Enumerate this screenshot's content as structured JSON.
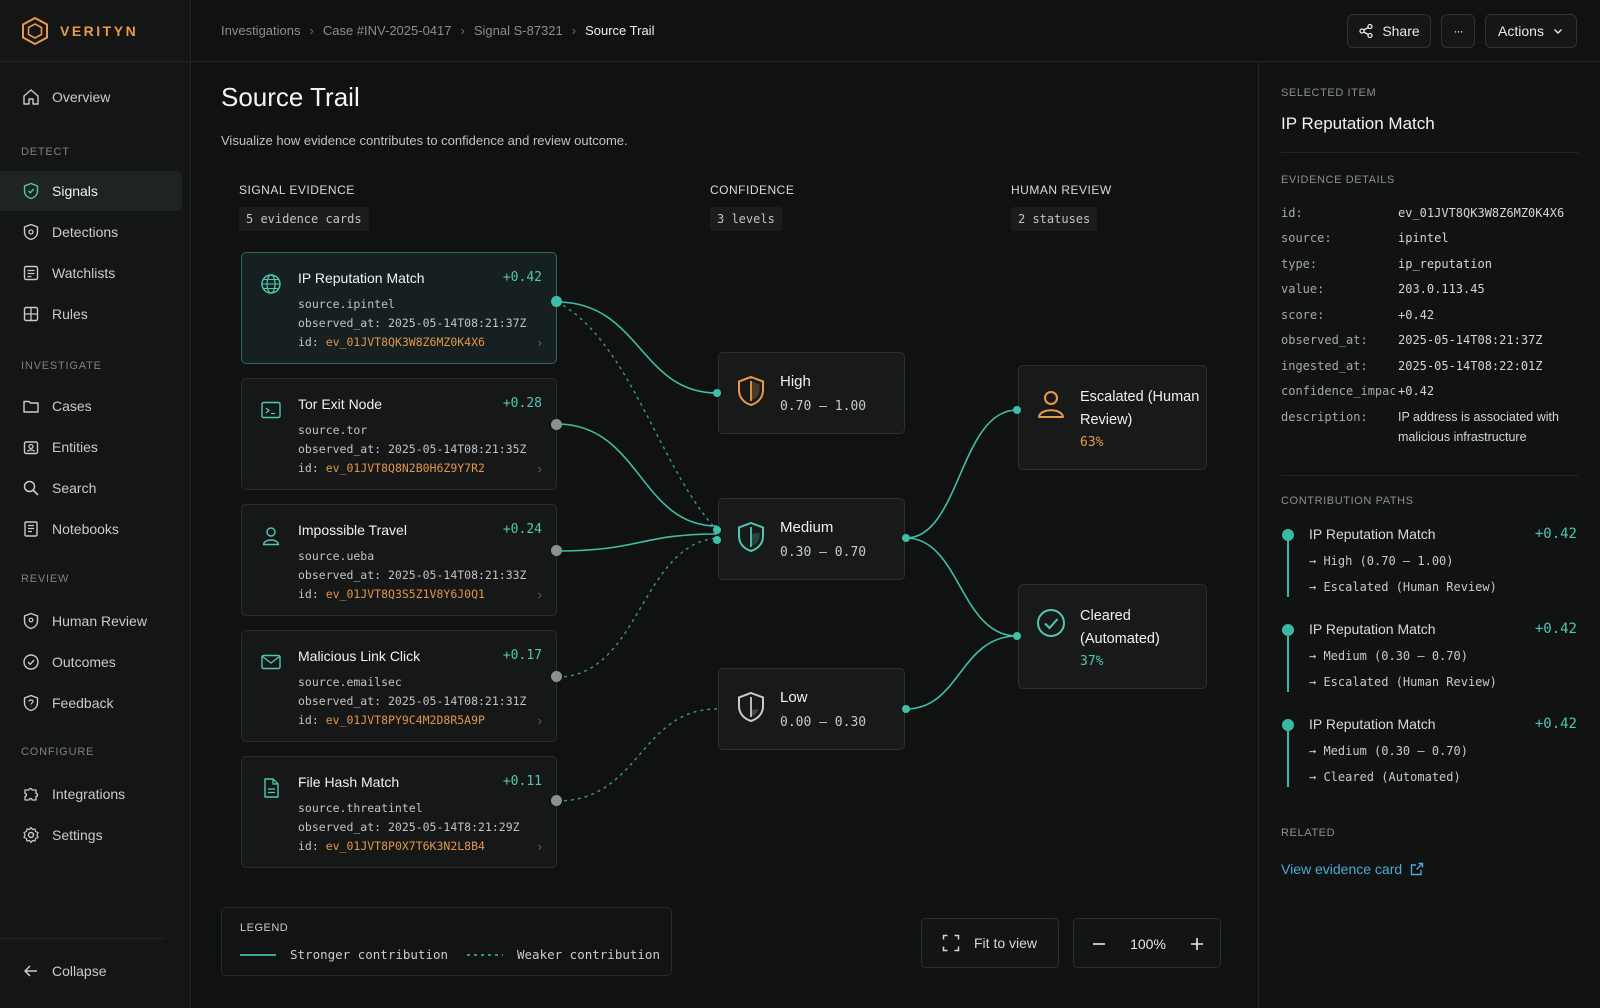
{
  "app": {
    "brand": "VERITYN"
  },
  "sidebar": {
    "items": [
      {
        "label": "Overview",
        "icon": "home-icon"
      },
      {
        "label": "Signals",
        "icon": "shield-icon",
        "active": true
      },
      {
        "label": "Detections",
        "icon": "radar-icon"
      },
      {
        "label": "Watchlists",
        "icon": "list-icon"
      },
      {
        "label": "Rules",
        "icon": "rules-icon"
      },
      {
        "label": "Cases",
        "icon": "folder-icon"
      },
      {
        "label": "Entities",
        "icon": "entities-icon"
      },
      {
        "label": "Search",
        "icon": "search-icon"
      },
      {
        "label": "Notebooks",
        "icon": "notebook-icon"
      },
      {
        "label": "Human Review",
        "icon": "review-icon"
      },
      {
        "label": "Outcomes",
        "icon": "target-icon"
      },
      {
        "label": "Feedback",
        "icon": "feedback-icon"
      },
      {
        "label": "Integrations",
        "icon": "puzzle-icon"
      },
      {
        "label": "Settings",
        "icon": "gear-icon"
      }
    ],
    "groups": [
      "DETECT",
      "INVESTIGATE",
      "REVIEW",
      "CONFIGURE"
    ],
    "collapse_label": "Collapse"
  },
  "header": {
    "breadcrumbs": [
      "Investigations",
      "Case #INV-2025-0417",
      "Signal S-87321",
      "Source Trail"
    ],
    "share_label": "Share",
    "more_label": "···",
    "actions_label": "Actions"
  },
  "main": {
    "title": "Source Trail",
    "subtitle": "Visualize how evidence contributes to confidence and review outcome.",
    "columns": [
      {
        "heading": "SIGNAL EVIDENCE",
        "chip": "5 evidence cards"
      },
      {
        "heading": "CONFIDENCE",
        "chip": "3 levels"
      },
      {
        "heading": "HUMAN REVIEW",
        "chip": "2 statuses"
      }
    ],
    "evidence": [
      {
        "title": "IP Reputation Match",
        "score": "+0.42",
        "source": "source.ipintel",
        "observed": "observed_at: 2025-05-14T08:21:37Z",
        "id_prefix": "id: ",
        "id": "ev_01JVT8QK3W8Z6MZ0K4X6",
        "icon": "globe-icon"
      },
      {
        "title": "Tor Exit Node",
        "score": "+0.28",
        "source": "source.tor",
        "observed": "observed_at: 2025-05-14T08:21:35Z",
        "id_prefix": "id: ",
        "id": "ev_01JVT8Q8N2B0H6Z9Y7R2",
        "icon": "terminal-icon"
      },
      {
        "title": "Impossible Travel",
        "score": "+0.24",
        "source": "source.ueba",
        "observed": "observed_at: 2025-05-14T08:21:33Z",
        "id_prefix": "id: ",
        "id": "ev_01JVT8Q3S5Z1V8Y6J0Q1",
        "icon": "user-icon"
      },
      {
        "title": "Malicious Link Click",
        "score": "+0.17",
        "source": "source.emailsec",
        "observed": "observed_at: 2025-05-14T08:21:31Z",
        "id_prefix": "id: ",
        "id": "ev_01JVT8PY9C4M2D8R5A9P",
        "icon": "mail-icon"
      },
      {
        "title": "File Hash Match",
        "score": "+0.11",
        "source": "source.threatintel",
        "observed": "observed_at: 2025-05-14T8:21:29Z",
        "id_prefix": "id: ",
        "id": "ev_01JVT8P0X7T6K3N2L8B4",
        "icon": "file-icon"
      }
    ],
    "confidence": [
      {
        "title": "High",
        "range": "0.70 – 1.00",
        "color": "#e89a4a"
      },
      {
        "title": "Medium",
        "range": "0.30 – 0.70",
        "color": "#4fc7b1"
      },
      {
        "title": "Low",
        "range": "0.00 – 0.30",
        "color": "#c9cccb"
      }
    ],
    "review": [
      {
        "title": "Escalated (Human Review)",
        "pct": "63%",
        "color": "#e89a4a"
      },
      {
        "title": "Cleared (Automated)",
        "pct": "37%",
        "color": "#4fc7b1"
      }
    ],
    "legend": {
      "heading": "LEGEND",
      "strong": "Stronger contribution",
      "weak": "Weaker contribution"
    },
    "fit_label": "Fit to view",
    "zoom": "100%"
  },
  "panel": {
    "selected_label": "SELECTED ITEM",
    "selected_title": "IP Reputation Match",
    "details_label": "EVIDENCE DETAILS",
    "details": [
      {
        "k": "id:",
        "v": "ev_01JVT8QK3W8Z6MZ0K4X6"
      },
      {
        "k": "source:",
        "v": "ipintel"
      },
      {
        "k": "type:",
        "v": "ip_reputation"
      },
      {
        "k": "value:",
        "v": "203.0.113.45"
      },
      {
        "k": "score:",
        "v": "+0.42"
      },
      {
        "k": "observed_at:",
        "v": "2025-05-14T08:21:37Z"
      },
      {
        "k": "ingested_at:",
        "v": "2025-05-14T08:22:01Z"
      },
      {
        "k": "confidence_impact:",
        "v": "+0.42"
      },
      {
        "k": "description:",
        "v": "IP address is associated with malicious infrastructure"
      }
    ],
    "paths_label": "CONTRIBUTION PATHS",
    "paths": [
      {
        "title": "IP Reputation Match",
        "score": "+0.42",
        "step1": "→ High (0.70 – 1.00)",
        "step2": "→ Escalated (Human Review)"
      },
      {
        "title": "IP Reputation Match",
        "score": "+0.42",
        "step1": "→ Medium (0.30 – 0.70)",
        "step2": "→ Escalated (Human Review)"
      },
      {
        "title": "IP Reputation Match",
        "score": "+0.42",
        "step1": "→ Medium (0.30 – 0.70)",
        "step2": "→ Cleared (Automated)"
      }
    ],
    "related_label": "RELATED",
    "related_link": "View evidence card"
  }
}
